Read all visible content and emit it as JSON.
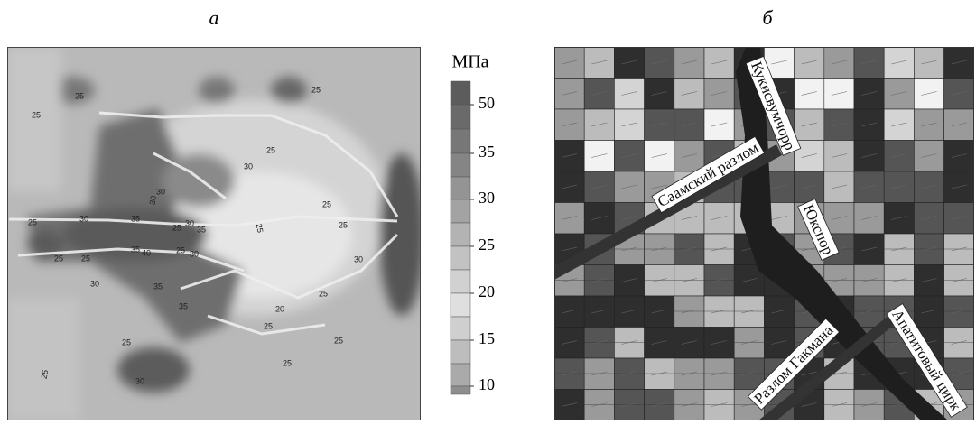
{
  "panels": [
    {
      "label": "а"
    },
    {
      "label": "б"
    }
  ],
  "colorbar": {
    "title": "МПа",
    "ticks": [
      50,
      35,
      30,
      25,
      20,
      15,
      10
    ]
  },
  "contour_labels": [
    "25",
    "25",
    "25",
    "25",
    "30",
    "30",
    "30",
    "25",
    "25",
    "30",
    "35",
    "30",
    "25",
    "35",
    "25",
    "25",
    "25",
    "35",
    "40",
    "25",
    "30",
    "25",
    "30",
    "35",
    "30",
    "25",
    "35",
    "20",
    "25",
    "25",
    "25",
    "25",
    "25",
    "30"
  ],
  "faults": [
    "Кукисвумчорр",
    "Саамский разлом",
    "Юкспор",
    "Разлом Гакмана",
    "Апатитовый цирк"
  ]
}
